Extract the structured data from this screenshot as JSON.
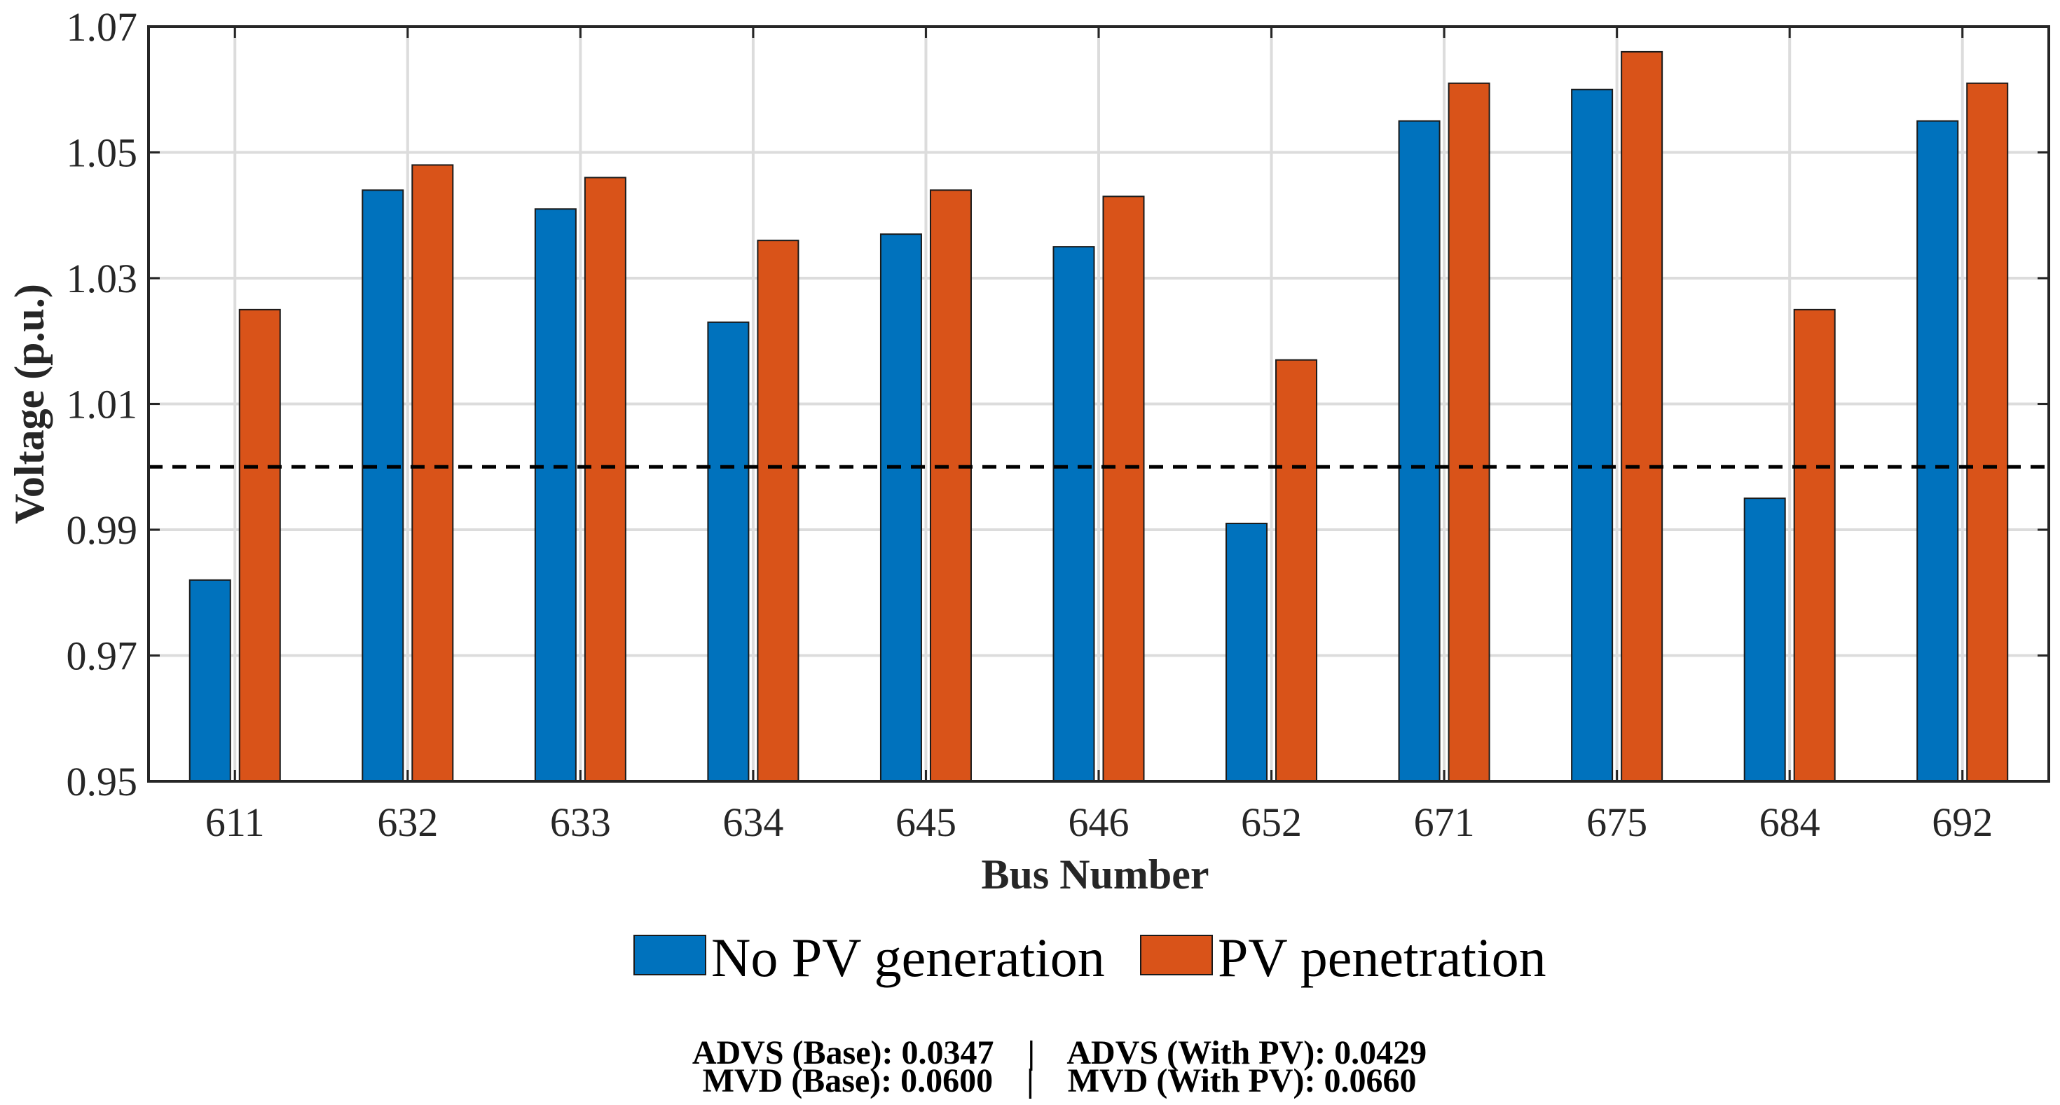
{
  "chart_data": {
    "type": "bar",
    "categories": [
      "611",
      "632",
      "633",
      "634",
      "645",
      "646",
      "652",
      "671",
      "675",
      "684",
      "692"
    ],
    "series": [
      {
        "name": "No PV generation",
        "color": "#0072BD",
        "values": [
          0.982,
          1.044,
          1.041,
          1.023,
          1.037,
          1.035,
          0.991,
          1.055,
          1.06,
          0.995,
          1.055
        ]
      },
      {
        "name": "PV penetration",
        "color": "#D95319",
        "values": [
          1.025,
          1.048,
          1.046,
          1.036,
          1.044,
          1.043,
          1.017,
          1.061,
          1.066,
          1.025,
          1.061
        ]
      }
    ],
    "xlabel": "Bus Number",
    "ylabel": "Voltage (p.u.)",
    "ylim": [
      0.95,
      1.07
    ],
    "yticks": [
      "0.95",
      "0.97",
      "0.99",
      "1.01",
      "1.03",
      "1.05",
      "1.07"
    ],
    "reference_line": {
      "value": 1.0,
      "style": "dashed"
    },
    "grid": true,
    "legend_placement": "bottom",
    "stats": {
      "line1": "ADVS (Base): 0.0347    |    ADVS (With PV): 0.0429",
      "line2": "MVD (Base): 0.0600    |    MVD (With PV): 0.0660"
    }
  }
}
